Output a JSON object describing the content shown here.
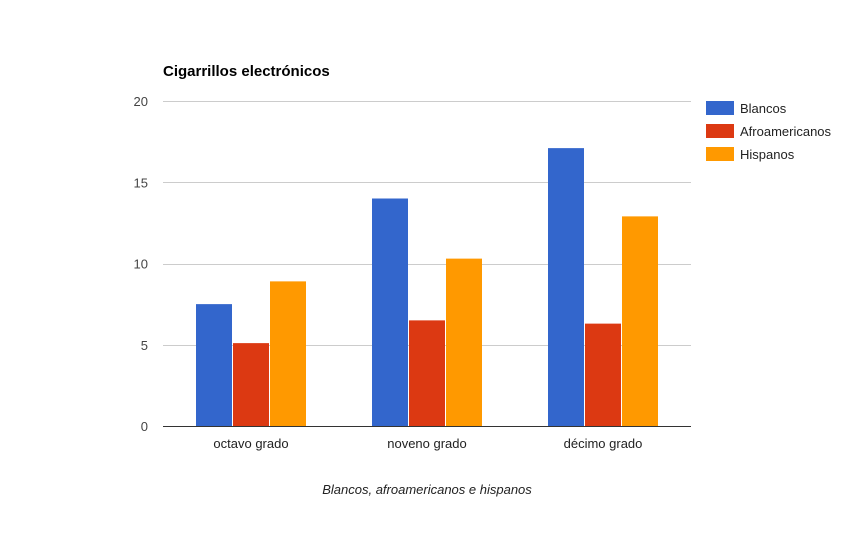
{
  "chart_data": {
    "type": "bar",
    "title": "Cigarrillos electrónicos",
    "xlabel": "Blancos, afroamericanos e hispanos",
    "ylabel": "",
    "ylim": [
      0,
      20
    ],
    "yticks": [
      0,
      5,
      10,
      15,
      20
    ],
    "grid": true,
    "legend_position": "right",
    "categories": [
      "octavo grado",
      "noveno grado",
      "décimo grado"
    ],
    "series": [
      {
        "name": "Blancos",
        "color": "#3366cc",
        "values": [
          7.5,
          14.0,
          17.1
        ]
      },
      {
        "name": "Afroamericanos",
        "color": "#dc3912",
        "values": [
          5.1,
          6.5,
          6.3
        ]
      },
      {
        "name": "Hispanos",
        "color": "#ff9900",
        "values": [
          8.9,
          10.3,
          12.9
        ]
      }
    ]
  }
}
